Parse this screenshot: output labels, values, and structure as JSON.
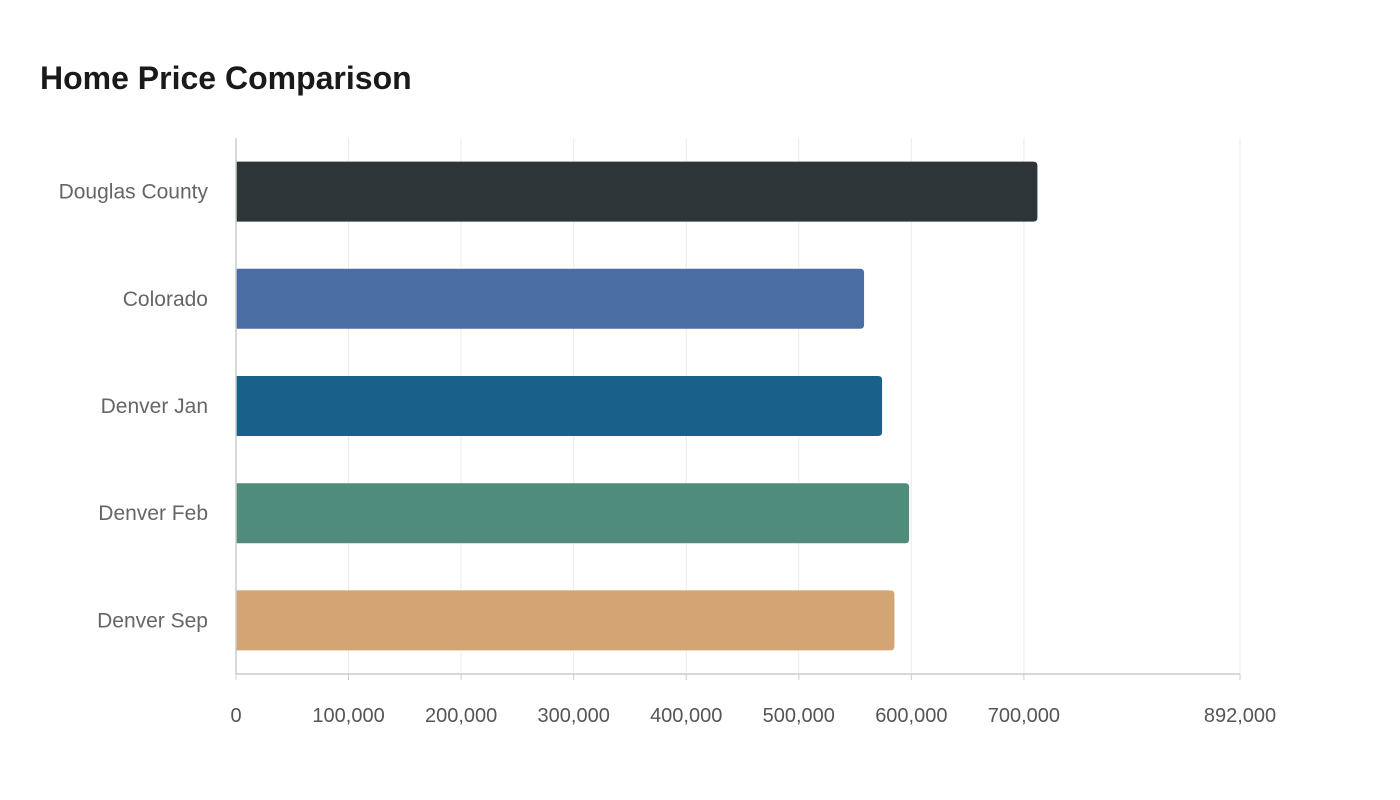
{
  "chart_data": {
    "type": "bar",
    "orientation": "horizontal",
    "title": "Home Price Comparison",
    "xlabel": "",
    "ylabel": "",
    "categories": [
      "Douglas County",
      "Colorado",
      "Denver Jan",
      "Denver Feb",
      "Denver Sep"
    ],
    "values": [
      712000,
      558000,
      574000,
      598000,
      585000
    ],
    "colors": [
      "#2e3538",
      "#4a6ea3",
      "#1a6189",
      "#4f8c7b",
      "#d3a574"
    ],
    "xlim": [
      0,
      892000
    ],
    "ticks": [
      0,
      100000,
      200000,
      300000,
      400000,
      500000,
      600000,
      700000,
      892000
    ],
    "tick_labels": [
      "0",
      "100,000",
      "200,000",
      "300,000",
      "400,000",
      "500,000",
      "600,000",
      "700,000",
      "892,000"
    ],
    "grid": true,
    "legend": "none"
  }
}
